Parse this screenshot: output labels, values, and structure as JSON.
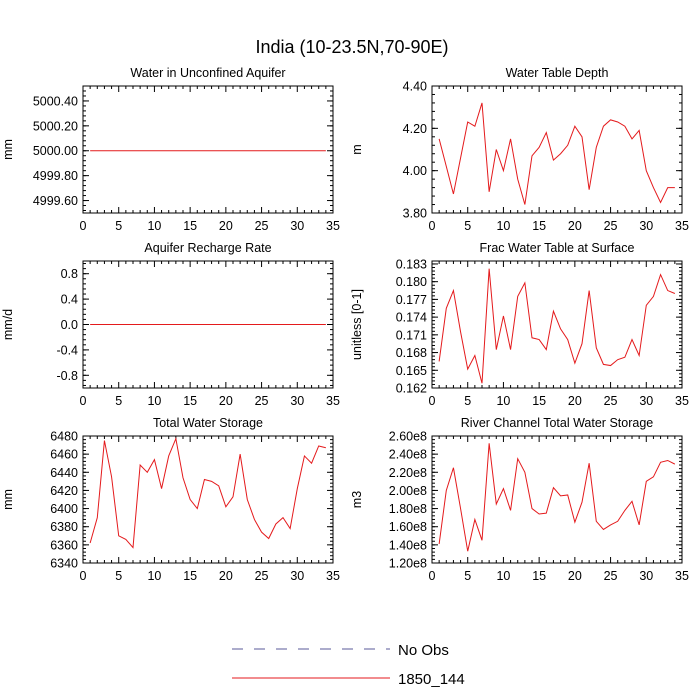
{
  "figure": {
    "title": "India (10-23.5N,70-90E)"
  },
  "legend": {
    "placement": "bottom-center",
    "entries": [
      {
        "name": "No Obs",
        "style": "dashed",
        "color": "#5a5a9a"
      },
      {
        "name": "1850_144",
        "style": "solid",
        "color": "#e41a1c"
      }
    ]
  },
  "chart_data": [
    {
      "type": "line",
      "title": "Water in Unconfined Aquifer",
      "xlabel": "",
      "ylabel": "mm",
      "xlim": [
        0,
        35
      ],
      "ylim": [
        4999.5,
        5000.52
      ],
      "xticks": [
        0,
        5,
        10,
        15,
        20,
        25,
        30,
        35
      ],
      "yticks": [
        4999.6,
        4999.8,
        5000.0,
        5000.2,
        5000.4
      ],
      "ytick_labels": [
        "4999.60",
        "4999.80",
        "5000.00",
        "5000.20",
        "5000.40"
      ],
      "series": [
        {
          "color": "#e41a1c",
          "x": [
            1,
            2,
            3,
            4,
            5,
            6,
            7,
            8,
            9,
            10,
            11,
            12,
            13,
            14,
            15,
            16,
            17,
            18,
            19,
            20,
            21,
            22,
            23,
            24,
            25,
            26,
            27,
            28,
            29,
            30,
            31,
            32,
            33,
            34
          ],
          "values": [
            5000,
            5000,
            5000,
            5000,
            5000,
            5000,
            5000,
            5000,
            5000,
            5000,
            5000,
            5000,
            5000,
            5000,
            5000,
            5000,
            5000,
            5000,
            5000,
            5000,
            5000,
            5000,
            5000,
            5000,
            5000,
            5000,
            5000,
            5000,
            5000,
            5000,
            5000,
            5000,
            5000,
            5000
          ]
        }
      ]
    },
    {
      "type": "line",
      "title": "Water Table Depth",
      "xlabel": "",
      "ylabel": "m",
      "xlim": [
        0,
        35
      ],
      "ylim": [
        3.8,
        4.4
      ],
      "xticks": [
        0,
        5,
        10,
        15,
        20,
        25,
        30,
        35
      ],
      "yticks": [
        3.8,
        4.0,
        4.2,
        4.4
      ],
      "ytick_labels": [
        "3.80",
        "4.00",
        "4.20",
        "4.40"
      ],
      "series": [
        {
          "color": "#e41a1c",
          "x": [
            1,
            2,
            3,
            4,
            5,
            6,
            7,
            8,
            9,
            10,
            11,
            12,
            13,
            14,
            15,
            16,
            17,
            18,
            19,
            20,
            21,
            22,
            23,
            24,
            25,
            26,
            27,
            28,
            29,
            30,
            31,
            32,
            33,
            34
          ],
          "values": [
            4.15,
            4.02,
            3.89,
            4.06,
            4.23,
            4.21,
            4.32,
            3.9,
            4.1,
            4.0,
            4.15,
            3.96,
            3.84,
            4.07,
            4.11,
            4.18,
            4.05,
            4.08,
            4.12,
            4.21,
            4.16,
            3.91,
            4.11,
            4.21,
            4.24,
            4.23,
            4.21,
            4.15,
            4.19,
            4.0,
            3.92,
            3.85,
            3.92,
            3.92
          ]
        }
      ]
    },
    {
      "type": "line",
      "title": "Aquifer Recharge Rate",
      "xlabel": "",
      "ylabel": "mm/d",
      "xlim": [
        0,
        35
      ],
      "ylim": [
        -1.0,
        1.0
      ],
      "xticks": [
        0,
        5,
        10,
        15,
        20,
        25,
        30,
        35
      ],
      "yticks": [
        -0.8,
        -0.4,
        0.0,
        0.4,
        0.8
      ],
      "ytick_labels": [
        "-0.8",
        "-0.4",
        "0.0",
        "0.4",
        "0.8"
      ],
      "series": [
        {
          "color": "#e41a1c",
          "x": [
            1,
            2,
            3,
            4,
            5,
            6,
            7,
            8,
            9,
            10,
            11,
            12,
            13,
            14,
            15,
            16,
            17,
            18,
            19,
            20,
            21,
            22,
            23,
            24,
            25,
            26,
            27,
            28,
            29,
            30,
            31,
            32,
            33,
            34
          ],
          "values": [
            0,
            0,
            0,
            0,
            0,
            0,
            0,
            0,
            0,
            0,
            0,
            0,
            0,
            0,
            0,
            0,
            0,
            0,
            0,
            0,
            0,
            0,
            0,
            0,
            0,
            0,
            0,
            0,
            0,
            0,
            0,
            0,
            0,
            0
          ]
        }
      ]
    },
    {
      "type": "line",
      "title": "Frac Water Table at Surface",
      "xlabel": "",
      "ylabel": "unitless [0-1]",
      "xlim": [
        0,
        35
      ],
      "ylim": [
        0.162,
        0.1835
      ],
      "xticks": [
        0,
        5,
        10,
        15,
        20,
        25,
        30,
        35
      ],
      "yticks": [
        0.162,
        0.165,
        0.168,
        0.171,
        0.174,
        0.177,
        0.18,
        0.183
      ],
      "ytick_labels": [
        "0.162",
        "0.165",
        "0.168",
        "0.171",
        "0.174",
        "0.177",
        "0.180",
        "0.183"
      ],
      "series": [
        {
          "color": "#e41a1c",
          "x": [
            1,
            2,
            3,
            4,
            5,
            6,
            7,
            8,
            9,
            10,
            11,
            12,
            13,
            14,
            15,
            16,
            17,
            18,
            19,
            20,
            21,
            22,
            23,
            24,
            25,
            26,
            27,
            28,
            29,
            30,
            31,
            32,
            33,
            34
          ],
          "values": [
            0.1665,
            0.1755,
            0.1785,
            0.1715,
            0.1652,
            0.1675,
            0.1628,
            0.1822,
            0.1685,
            0.1742,
            0.1685,
            0.1775,
            0.1798,
            0.1705,
            0.1702,
            0.1685,
            0.175,
            0.172,
            0.1702,
            0.1662,
            0.1695,
            0.1785,
            0.1688,
            0.166,
            0.1658,
            0.1668,
            0.1672,
            0.1702,
            0.1675,
            0.176,
            0.1775,
            0.1812,
            0.1785,
            0.178
          ]
        }
      ]
    },
    {
      "type": "line",
      "title": "Total Water Storage",
      "xlabel": "",
      "ylabel": "mm",
      "xlim": [
        0,
        35
      ],
      "ylim": [
        6340,
        6480
      ],
      "xticks": [
        0,
        5,
        10,
        15,
        20,
        25,
        30,
        35
      ],
      "yticks": [
        6340,
        6360,
        6380,
        6400,
        6420,
        6440,
        6460,
        6480
      ],
      "ytick_labels": [
        "6340",
        "6360",
        "6380",
        "6400",
        "6420",
        "6440",
        "6460",
        "6480"
      ],
      "series": [
        {
          "color": "#e41a1c",
          "x": [
            1,
            2,
            3,
            4,
            5,
            6,
            7,
            8,
            9,
            10,
            11,
            12,
            13,
            14,
            15,
            16,
            17,
            18,
            19,
            20,
            21,
            22,
            23,
            24,
            25,
            26,
            27,
            28,
            29,
            30,
            31,
            32,
            33,
            34
          ],
          "values": [
            6362,
            6390,
            6475,
            6435,
            6370,
            6366,
            6357,
            6448,
            6440,
            6454,
            6422,
            6458,
            6477,
            6434,
            6410,
            6400,
            6432,
            6430,
            6425,
            6402,
            6413,
            6460,
            6410,
            6388,
            6374,
            6367,
            6383,
            6390,
            6378,
            6422,
            6458,
            6450,
            6469,
            6467
          ]
        }
      ]
    },
    {
      "type": "line",
      "title": "River Channel Total Water Storage",
      "xlabel": "",
      "ylabel": "m3",
      "xlim": [
        0,
        35
      ],
      "ylim": [
        120000000,
        260000000
      ],
      "xticks": [
        0,
        5,
        10,
        15,
        20,
        25,
        30,
        35
      ],
      "yticks": [
        120000000,
        140000000,
        160000000,
        180000000,
        200000000,
        220000000,
        240000000,
        260000000
      ],
      "ytick_labels": [
        "1.20e8",
        "1.40e8",
        "1.60e8",
        "1.80e8",
        "2.00e8",
        "2.20e8",
        "2.40e8",
        "2.60e8"
      ],
      "series": [
        {
          "color": "#e41a1c",
          "x": [
            1,
            2,
            3,
            4,
            5,
            6,
            7,
            8,
            9,
            10,
            11,
            12,
            13,
            14,
            15,
            16,
            17,
            18,
            19,
            20,
            21,
            22,
            23,
            24,
            25,
            26,
            27,
            28,
            29,
            30,
            31,
            32,
            33,
            34
          ],
          "values": [
            141000000,
            200000000,
            225000000,
            180000000,
            133000000,
            168000000,
            145000000,
            252000000,
            185000000,
            202000000,
            178000000,
            235000000,
            220000000,
            180000000,
            174000000,
            175000000,
            203000000,
            194000000,
            195000000,
            165000000,
            187000000,
            230000000,
            166000000,
            157000000,
            162000000,
            166000000,
            178000000,
            188000000,
            162000000,
            210000000,
            215000000,
            231000000,
            233000000,
            229000000
          ]
        }
      ]
    }
  ]
}
